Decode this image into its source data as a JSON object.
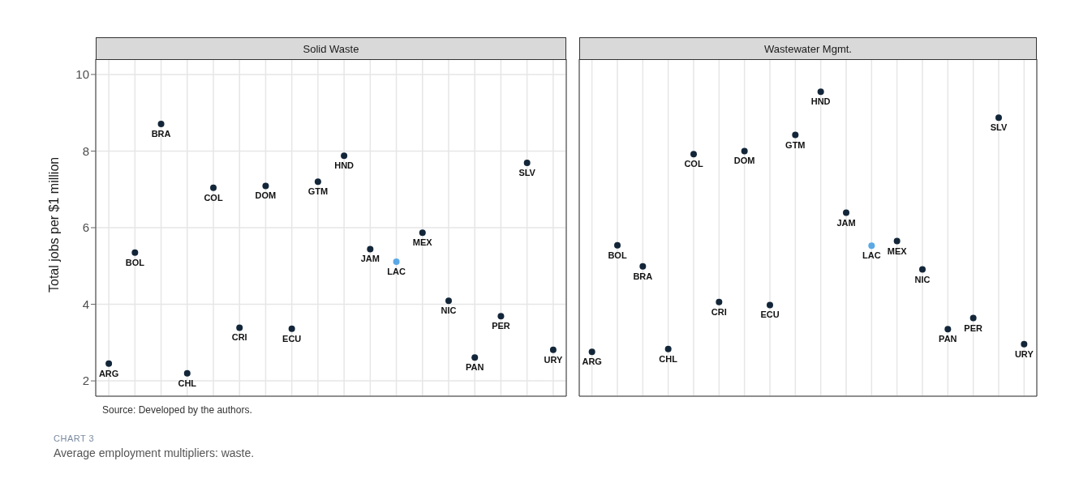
{
  "chart_data": [
    {
      "type": "scatter",
      "title": "Solid Waste",
      "ylabel": "Total jobs per $1 million",
      "categories": [
        "ARG",
        "BOL",
        "BRA",
        "CHL",
        "COL",
        "CRI",
        "DOM",
        "ECU",
        "GTM",
        "HND",
        "JAM",
        "LAC",
        "MEX",
        "NIC",
        "PAN",
        "PER",
        "SLV",
        "URY"
      ],
      "values": [
        2.45,
        5.35,
        8.71,
        2.2,
        7.04,
        3.39,
        7.09,
        3.36,
        7.2,
        7.88,
        5.44,
        5.11,
        5.87,
        4.09,
        2.61,
        3.69,
        7.69,
        2.81
      ],
      "colors": [
        "#132639",
        "#132639",
        "#132639",
        "#132639",
        "#132639",
        "#132639",
        "#132639",
        "#132639",
        "#132639",
        "#132639",
        "#132639",
        "#5aa9e6",
        "#132639",
        "#132639",
        "#132639",
        "#132639",
        "#132639",
        "#132639"
      ],
      "ylim": [
        1.6,
        10.4
      ],
      "yticks": [
        2,
        4,
        6,
        8,
        10
      ],
      "grid": true,
      "marker": "circle",
      "tick_labels": "y",
      "annotations": [
        "Source: Developed by the authors.",
        "CHART 3",
        "Average employment multipliers: waste."
      ]
    },
    {
      "type": "scatter",
      "title": "Wastewater Mgmt.",
      "categories": [
        "ARG",
        "BOL",
        "BRA",
        "CHL",
        "COL",
        "CRI",
        "DOM",
        "ECU",
        "GTM",
        "HND",
        "JAM",
        "LAC",
        "MEX",
        "NIC",
        "PAN",
        "PER",
        "SLV",
        "URY"
      ],
      "values": [
        2.76,
        5.54,
        4.99,
        2.83,
        7.92,
        4.06,
        8.0,
        3.98,
        8.42,
        9.55,
        6.39,
        5.53,
        5.65,
        4.91,
        3.35,
        3.64,
        8.87,
        2.96
      ],
      "colors": [
        "#132639",
        "#132639",
        "#132639",
        "#132639",
        "#132639",
        "#132639",
        "#132639",
        "#132639",
        "#132639",
        "#132639",
        "#132639",
        "#5aa9e6",
        "#132639",
        "#132639",
        "#132639",
        "#132639",
        "#132639",
        "#132639"
      ],
      "ylim": [
        1.6,
        10.4
      ],
      "yticks": [
        2,
        4,
        6,
        8,
        10
      ],
      "grid": true,
      "marker": "circle",
      "tick_labels": false
    }
  ]
}
